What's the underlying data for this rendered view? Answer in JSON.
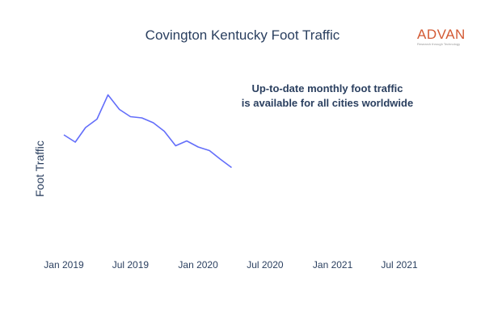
{
  "header": {
    "title": "Covington Kentucky Foot Traffic",
    "logo_text": "ADVAN",
    "logo_tagline": "Research through Technology"
  },
  "annotation": {
    "line1": "Up-to-date monthly foot traffic",
    "line2": "is available for all cities worldwide"
  },
  "colors": {
    "line": "#636efa",
    "text": "#2a3f5f",
    "logo": "#d35a34"
  },
  "chart_data": {
    "type": "line",
    "title": "Covington Kentucky Foot Traffic",
    "xlabel": "",
    "ylabel": "Foot Traffic",
    "y_ticks_shown": false,
    "grid": false,
    "x_tick_labels": [
      "Jan 2019",
      "Jul 2019",
      "Jan 2020",
      "Jul 2020",
      "Jan 2021",
      "Jul 2021"
    ],
    "x_tick_dates": [
      "2019-01-01",
      "2019-07-01",
      "2020-01-01",
      "2020-07-01",
      "2021-01-01",
      "2021-07-01"
    ],
    "x": [
      "2019-01-01",
      "2019-02-01",
      "2019-03-01",
      "2019-04-01",
      "2019-05-01",
      "2019-06-01",
      "2019-07-01",
      "2019-08-01",
      "2019-09-01",
      "2019-10-01",
      "2019-11-01",
      "2019-12-01",
      "2020-01-01",
      "2020-02-01",
      "2020-03-01",
      "2020-04-01"
    ],
    "values": [
      82,
      76,
      88,
      95,
      115,
      103,
      97,
      96,
      92,
      85,
      73,
      77,
      72,
      69,
      62,
      55
    ],
    "ylim": [
      0,
      140
    ],
    "series": [
      {
        "values": [
          82,
          76,
          88,
          95,
          115,
          103,
          97,
          96,
          92,
          85,
          73,
          77,
          72,
          69,
          62,
          55
        ]
      }
    ]
  }
}
